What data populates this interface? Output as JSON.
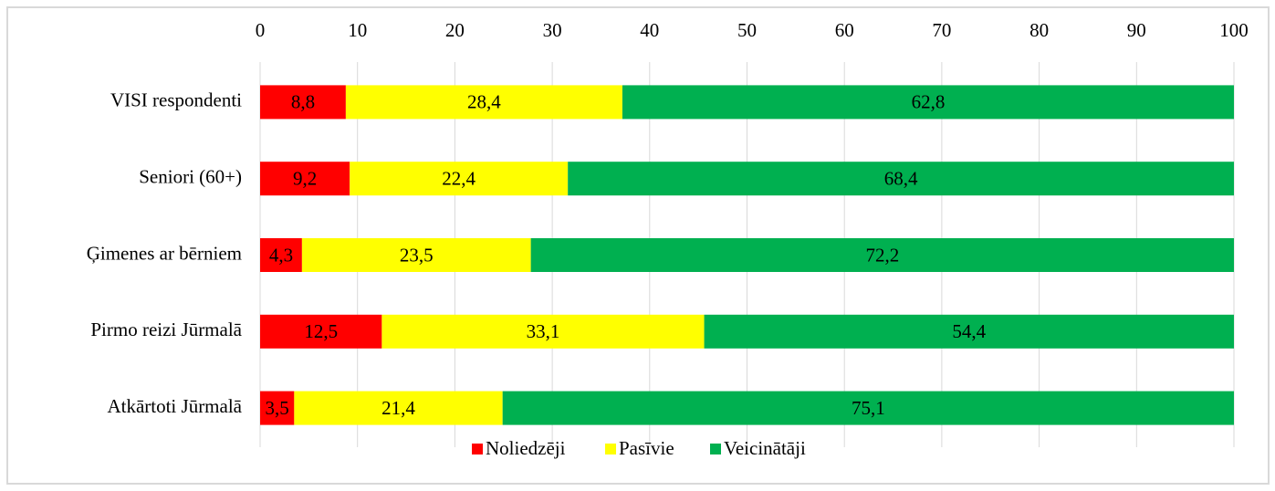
{
  "chart_data": {
    "type": "stacked-bar-horizontal",
    "categories": [
      "VISI respondenti",
      "Seniori (60+)",
      "Ģimenes ar bērniem",
      "Pirmo reizi Jūrmalā",
      "Atkārtoti Jūrmalā"
    ],
    "series": [
      {
        "name": "Noliedzēji",
        "color": "#ff0000",
        "values": [
          8.8,
          9.2,
          4.3,
          12.5,
          3.5
        ],
        "value_labels": [
          "8,8",
          "9,2",
          "4,3",
          "12,5",
          "3,5"
        ]
      },
      {
        "name": "Pasīvie",
        "color": "#ffff00",
        "values": [
          28.4,
          22.4,
          23.5,
          33.1,
          21.4
        ],
        "value_labels": [
          "28,4",
          "22,4",
          "23,5",
          "33,1",
          "21,4"
        ]
      },
      {
        "name": "Veicinātāji",
        "color": "#00b050",
        "values": [
          62.8,
          68.4,
          72.2,
          54.4,
          75.1
        ],
        "value_labels": [
          "62,8",
          "68,4",
          "72,2",
          "54,4",
          "75,1"
        ]
      }
    ],
    "xlim": [
      0,
      100
    ],
    "xticks": [
      0,
      10,
      20,
      30,
      40,
      50,
      60,
      70,
      80,
      90,
      100
    ],
    "grid": true,
    "legend": "bottom"
  }
}
